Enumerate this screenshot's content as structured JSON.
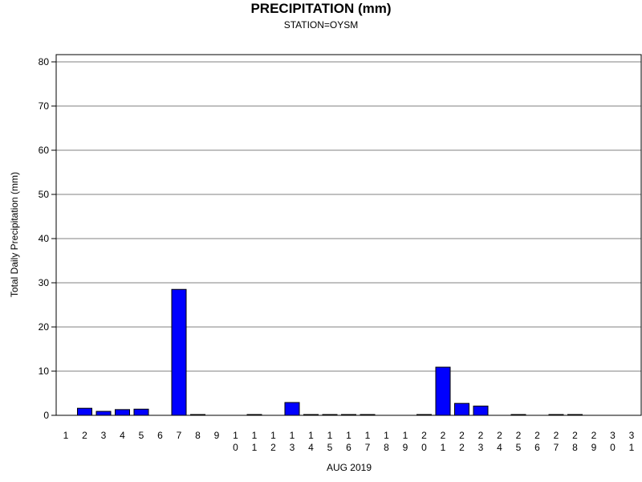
{
  "chart_data": {
    "type": "bar",
    "title": "PRECIPITATION (mm)",
    "subtitle": "STATION=OYSM",
    "xlabel": "AUG 2019",
    "ylabel": "Total Daily Precipitation (mm)",
    "ylim": [
      0,
      80
    ],
    "yticks": [
      0,
      10,
      20,
      30,
      40,
      50,
      60,
      70,
      80
    ],
    "grid": true,
    "bar_color": "#0000ff",
    "categories": [
      "1",
      "2",
      "3",
      "4",
      "5",
      "6",
      "7",
      "8",
      "9",
      "10",
      "11",
      "12",
      "13",
      "14",
      "15",
      "16",
      "17",
      "18",
      "19",
      "20",
      "21",
      "22",
      "23",
      "24",
      "25",
      "26",
      "27",
      "28",
      "29",
      "30",
      "31"
    ],
    "values": [
      0,
      1.6,
      0.9,
      1.3,
      1.4,
      0,
      28.5,
      0.1,
      0,
      0,
      0.1,
      0,
      2.9,
      0.1,
      0.1,
      0.1,
      0.1,
      0,
      0,
      0.1,
      10.9,
      2.7,
      2.1,
      0,
      0.1,
      0,
      0.1,
      0.1,
      0,
      0,
      0
    ]
  }
}
